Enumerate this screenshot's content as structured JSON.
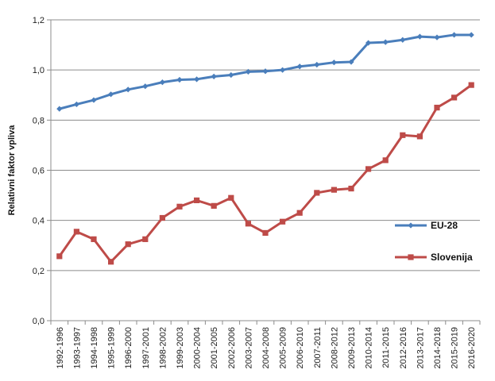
{
  "chart_data": {
    "type": "line",
    "title": "",
    "xlabel": "",
    "ylabel": "Relativni faktor vpliva",
    "ylim": [
      0,
      1.2
    ],
    "yticks": [
      "0,0",
      "0,2",
      "0,4",
      "0,6",
      "0,8",
      "1,0",
      "1,2"
    ],
    "ytick_values": [
      0,
      0.2,
      0.4,
      0.6,
      0.8,
      1.0,
      1.2
    ],
    "grid": "horizontal",
    "legend_position": "right",
    "categories": [
      "1992-1996",
      "1993-1997",
      "1994-1998",
      "1995-1999",
      "1996-2000",
      "1997-2001",
      "1998-2002",
      "1999-2003",
      "2000-2004",
      "2001-2005",
      "2002-2006",
      "2003-2007",
      "2004-2008",
      "2005-2009",
      "2006-2010",
      "2007-2011",
      "2008-2012",
      "2009-2013",
      "2010-2014",
      "2011-2015",
      "2012-2016",
      "2013-2017",
      "2014-2018",
      "2015-2019",
      "2016-2020"
    ],
    "series": [
      {
        "name": "EU-28",
        "color": "#4a7ebb",
        "marker": "diamond",
        "values": [
          0.845,
          0.863,
          0.88,
          0.903,
          0.922,
          0.935,
          0.951,
          0.961,
          0.963,
          0.974,
          0.98,
          0.993,
          0.995,
          1.0,
          1.014,
          1.021,
          1.03,
          1.032,
          1.108,
          1.111,
          1.12,
          1.133,
          1.13,
          1.14,
          1.14
        ]
      },
      {
        "name": "Slovenija",
        "color": "#be4b48",
        "marker": "square",
        "values": [
          0.257,
          0.355,
          0.325,
          0.235,
          0.305,
          0.325,
          0.41,
          0.455,
          0.48,
          0.458,
          0.49,
          0.387,
          0.35,
          0.395,
          0.43,
          0.51,
          0.522,
          0.527,
          0.605,
          0.64,
          0.74,
          0.735,
          0.85,
          0.89,
          0.94
        ]
      }
    ]
  }
}
